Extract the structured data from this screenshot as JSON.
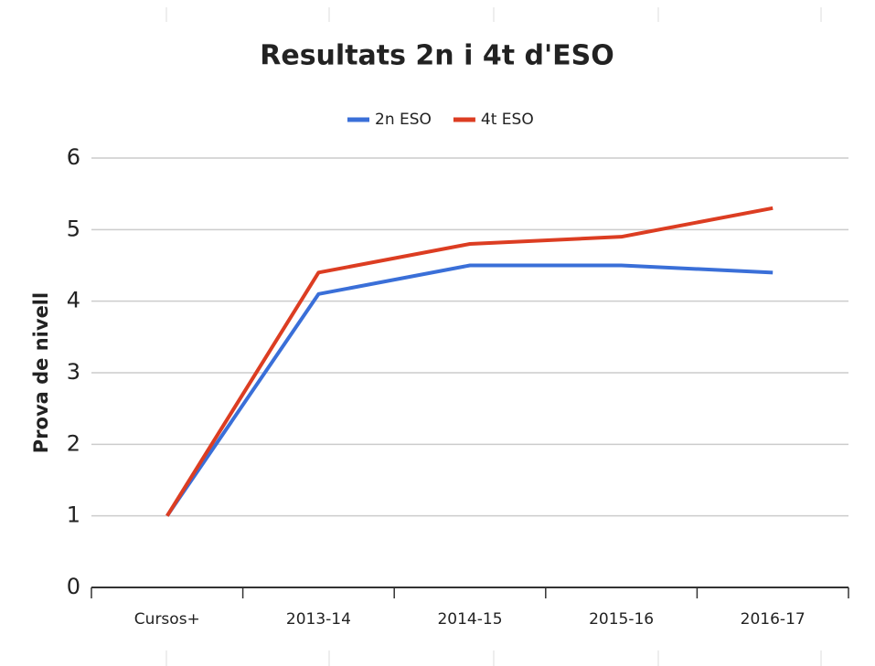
{
  "chart_data": {
    "type": "line",
    "title": "Resultats 2n i 4t d'ESO",
    "y_label": "Prova de nivell",
    "categories": [
      "Cursos+",
      "2013-14",
      "2014-15",
      "2015-16",
      "2016-17"
    ],
    "series": [
      {
        "name": "2n ESO",
        "color": "#3a6fd8",
        "values": [
          1,
          4.1,
          4.5,
          4.5,
          4.4
        ]
      },
      {
        "name": "4t ESO",
        "color": "#dc3d22",
        "values": [
          1,
          4.4,
          4.8,
          4.9,
          5.3
        ]
      }
    ],
    "ylim": [
      0,
      6
    ],
    "yticks": [
      0,
      1,
      2,
      3,
      4,
      5,
      6
    ],
    "grid": true,
    "legend": "top"
  }
}
